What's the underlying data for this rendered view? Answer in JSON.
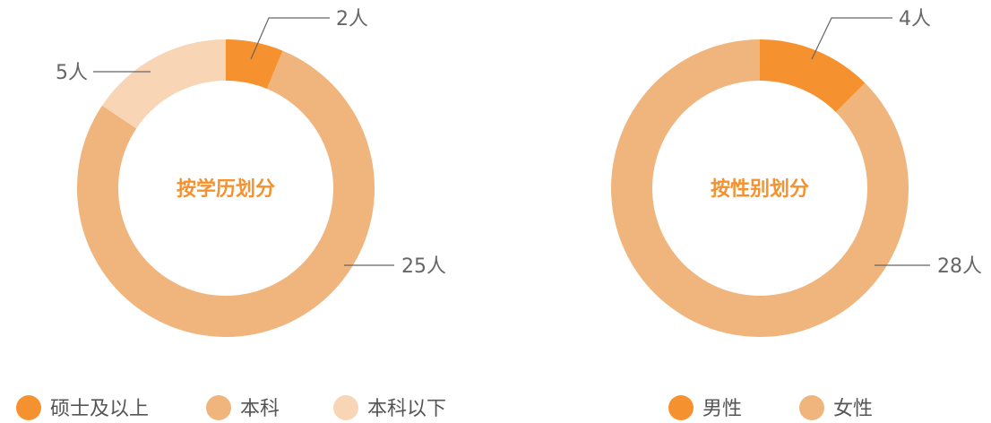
{
  "chart_data": [
    {
      "type": "pie",
      "title": "按学历划分",
      "categories": [
        "硕士及以上",
        "本科",
        "本科以下"
      ],
      "values": [
        2,
        25,
        5
      ],
      "value_labels": [
        "2人",
        "25人",
        "5人"
      ],
      "colors": [
        "#f5922f",
        "#f0b47d",
        "#f8d5b5"
      ],
      "legend": [
        "硕士及以上",
        "本科",
        "本科以下"
      ],
      "legend_position": "bottom",
      "donut": true
    },
    {
      "type": "pie",
      "title": "按性别划分",
      "categories": [
        "男性",
        "女性"
      ],
      "values": [
        4,
        28
      ],
      "value_labels": [
        "4人",
        "28人"
      ],
      "colors": [
        "#f5922f",
        "#f0b47d"
      ],
      "legend": [
        "男性",
        "女性"
      ],
      "legend_position": "bottom",
      "donut": true
    }
  ]
}
